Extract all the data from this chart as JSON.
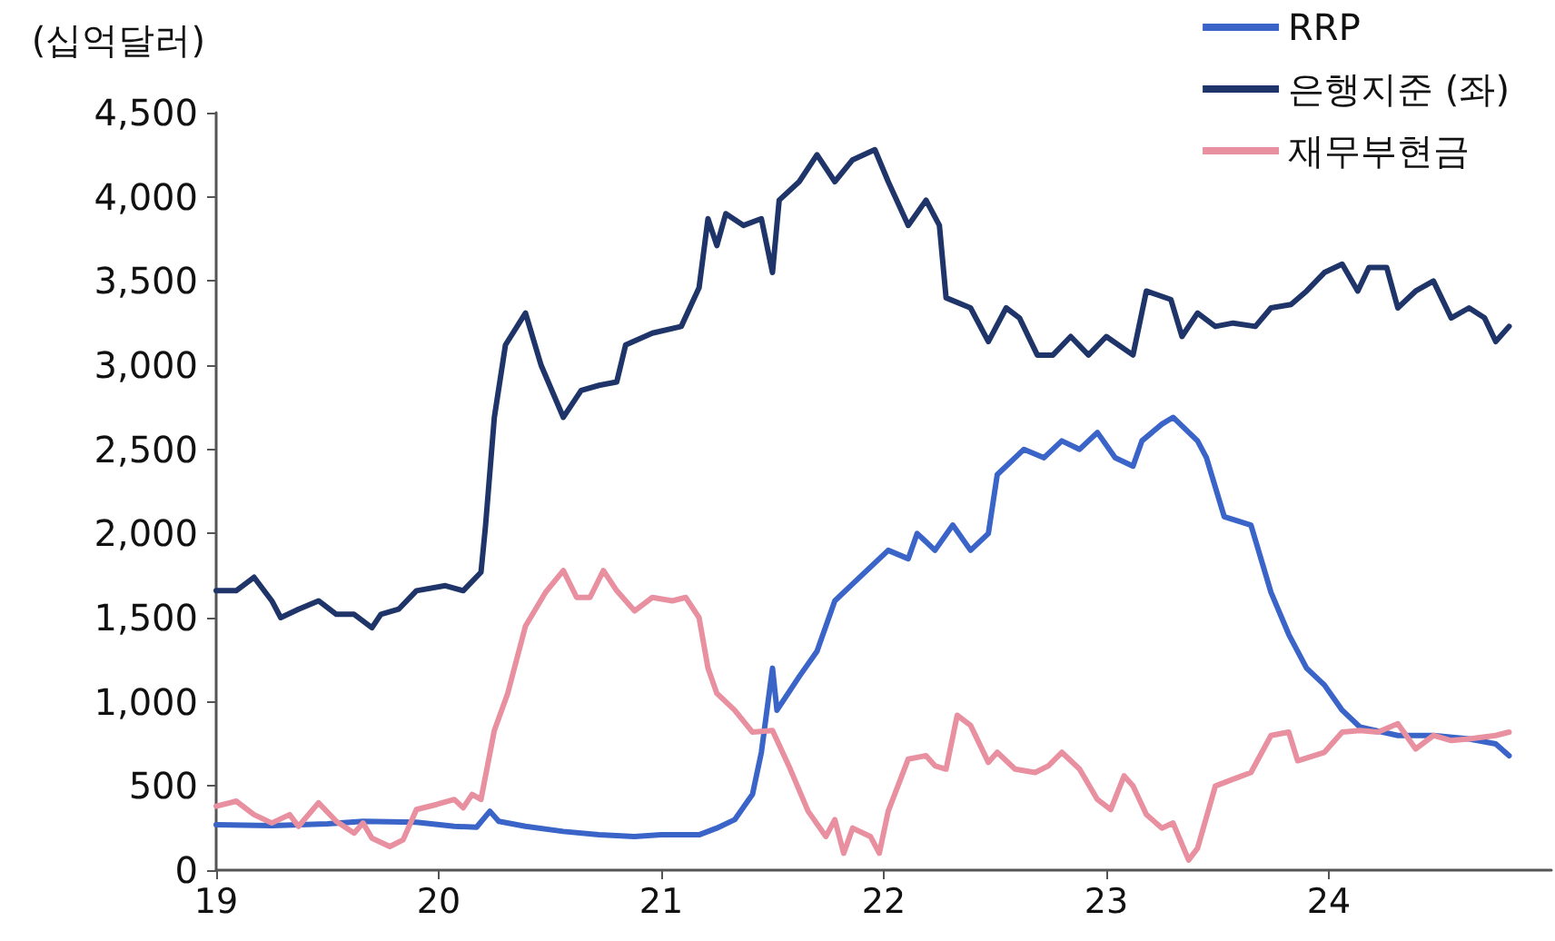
{
  "chart_data": {
    "type": "line",
    "ylabel": "(십억달러)",
    "legend": "top right",
    "grid": false,
    "marker": "none",
    "line_style": "solid",
    "xlim": [
      2019,
      2025
    ],
    "xticks": [
      {
        "value": 2019,
        "label": "19"
      },
      {
        "value": 2020,
        "label": "20"
      },
      {
        "value": 2021,
        "label": "21"
      },
      {
        "value": 2022,
        "label": "22"
      },
      {
        "value": 2023,
        "label": "23"
      },
      {
        "value": 2024,
        "label": "24"
      }
    ],
    "ylim": [
      0,
      4500
    ],
    "yticks": [
      {
        "value": 0,
        "label": "0"
      },
      {
        "value": 500,
        "label": "500"
      },
      {
        "value": 1000,
        "label": "1,000"
      },
      {
        "value": 1500,
        "label": "1,500"
      },
      {
        "value": 2000,
        "label": "2,000"
      },
      {
        "value": 2500,
        "label": "2,500"
      },
      {
        "value": 3000,
        "label": "3,000"
      },
      {
        "value": 3500,
        "label": "3,500"
      },
      {
        "value": 4000,
        "label": "4,000"
      },
      {
        "value": 4500,
        "label": "4,500"
      }
    ],
    "series": [
      {
        "name": "RRP",
        "color": "#3a64c8",
        "x": [
          2019,
          2019.25,
          2019.5,
          2019.66,
          2019.9,
          2020.07,
          2020.17,
          2020.23,
          2020.27,
          2020.39,
          2020.56,
          2020.72,
          2020.88,
          2021.0,
          2021.17,
          2021.25,
          2021.33,
          2021.41,
          2021.45,
          2021.5,
          2021.52,
          2021.62,
          2021.7,
          2021.78,
          2021.86,
          2021.94,
          2022.02,
          2022.11,
          2022.15,
          2022.23,
          2022.31,
          2022.39,
          2022.47,
          2022.51,
          2022.63,
          2022.72,
          2022.8,
          2022.88,
          2022.96,
          2023.04,
          2023.12,
          2023.16,
          2023.25,
          2023.3,
          2023.41,
          2023.45,
          2023.53,
          2023.65,
          2023.74,
          2023.82,
          2023.9,
          2023.98,
          2024.06,
          2024.14,
          2024.31,
          2024.47,
          2024.63,
          2024.75,
          2024.81
        ],
        "values": [
          270,
          265,
          275,
          290,
          285,
          260,
          255,
          350,
          290,
          260,
          230,
          210,
          200,
          210,
          210,
          250,
          300,
          450,
          700,
          1200,
          950,
          1150,
          1300,
          1600,
          1700,
          1800,
          1900,
          1850,
          2000,
          1900,
          2050,
          1900,
          2000,
          2350,
          2500,
          2450,
          2550,
          2500,
          2600,
          2450,
          2400,
          2550,
          2650,
          2690,
          2550,
          2450,
          2100,
          2050,
          1650,
          1400,
          1200,
          1100,
          950,
          850,
          800,
          800,
          780,
          750,
          680
        ]
      },
      {
        "name": "은행지준 (좌)",
        "color": "#1f3569",
        "x": [
          2019,
          2019.09,
          2019.17,
          2019.25,
          2019.29,
          2019.37,
          2019.46,
          2019.54,
          2019.62,
          2019.7,
          2019.74,
          2019.82,
          2019.9,
          2020.03,
          2020.11,
          2020.19,
          2020.21,
          2020.25,
          2020.3,
          2020.39,
          2020.46,
          2020.56,
          2020.64,
          2020.72,
          2020.8,
          2020.84,
          2020.96,
          2021.09,
          2021.17,
          2021.21,
          2021.25,
          2021.29,
          2021.37,
          2021.45,
          2021.5,
          2021.53,
          2021.62,
          2021.7,
          2021.78,
          2021.86,
          2021.96,
          2022.02,
          2022.11,
          2022.19,
          2022.25,
          2022.28,
          2022.39,
          2022.47,
          2022.55,
          2022.61,
          2022.69,
          2022.76,
          2022.84,
          2022.92,
          2023.0,
          2023.12,
          2023.18,
          2023.29,
          2023.34,
          2023.41,
          2023.49,
          2023.57,
          2023.67,
          2023.74,
          2023.83,
          2023.9,
          2023.98,
          2024.06,
          2024.13,
          2024.18,
          2024.26,
          2024.31,
          2024.39,
          2024.47,
          2024.55,
          2024.63,
          2024.7,
          2024.75,
          2024.81
        ],
        "values": [
          1660,
          1660,
          1740,
          1600,
          1500,
          1550,
          1600,
          1520,
          1520,
          1440,
          1520,
          1550,
          1660,
          1690,
          1660,
          1770,
          2040,
          2690,
          3120,
          3310,
          3000,
          2690,
          2850,
          2880,
          2900,
          3120,
          3190,
          3230,
          3460,
          3870,
          3710,
          3900,
          3830,
          3870,
          3550,
          3980,
          4090,
          4250,
          4090,
          4220,
          4280,
          4090,
          3830,
          3980,
          3830,
          3400,
          3340,
          3140,
          3340,
          3280,
          3060,
          3060,
          3170,
          3060,
          3170,
          3060,
          3440,
          3390,
          3170,
          3310,
          3230,
          3250,
          3230,
          3340,
          3360,
          3440,
          3550,
          3600,
          3440,
          3580,
          3580,
          3340,
          3440,
          3500,
          3280,
          3340,
          3280,
          3140,
          3230
        ]
      },
      {
        "name": "재무부현금",
        "color": "#e88fa0",
        "x": [
          2019,
          2019.09,
          2019.17,
          2019.25,
          2019.33,
          2019.37,
          2019.46,
          2019.54,
          2019.62,
          2019.66,
          2019.7,
          2019.78,
          2019.84,
          2019.9,
          2019.99,
          2020.07,
          2020.11,
          2020.15,
          2020.19,
          2020.25,
          2020.31,
          2020.39,
          2020.48,
          2020.56,
          2020.62,
          2020.68,
          2020.74,
          2020.8,
          2020.88,
          2020.96,
          2021.05,
          2021.11,
          2021.17,
          2021.21,
          2021.25,
          2021.33,
          2021.41,
          2021.5,
          2021.58,
          2021.66,
          2021.74,
          2021.78,
          2021.82,
          2021.86,
          2021.94,
          2021.98,
          2022.02,
          2022.11,
          2022.19,
          2022.23,
          2022.28,
          2022.33,
          2022.39,
          2022.47,
          2022.51,
          2022.59,
          2022.68,
          2022.74,
          2022.8,
          2022.88,
          2022.96,
          2023.02,
          2023.08,
          2023.12,
          2023.18,
          2023.25,
          2023.3,
          2023.37,
          2023.41,
          2023.49,
          2023.57,
          2023.65,
          2023.74,
          2023.82,
          2023.86,
          2023.98,
          2024.06,
          2024.14,
          2024.22,
          2024.31,
          2024.39,
          2024.47,
          2024.55,
          2024.63,
          2024.75,
          2024.81
        ],
        "values": [
          380,
          410,
          330,
          280,
          330,
          260,
          400,
          290,
          220,
          280,
          190,
          140,
          180,
          360,
          390,
          420,
          370,
          450,
          420,
          830,
          1050,
          1450,
          1650,
          1780,
          1620,
          1620,
          1780,
          1660,
          1540,
          1620,
          1600,
          1620,
          1500,
          1200,
          1050,
          950,
          820,
          830,
          600,
          350,
          200,
          300,
          100,
          250,
          200,
          100,
          350,
          660,
          680,
          620,
          600,
          920,
          860,
          640,
          700,
          600,
          580,
          620,
          700,
          600,
          420,
          360,
          560,
          500,
          330,
          250,
          280,
          60,
          130,
          500,
          540,
          580,
          800,
          820,
          650,
          700,
          820,
          830,
          820,
          870,
          720,
          800,
          770,
          780,
          800,
          820
        ]
      }
    ]
  }
}
